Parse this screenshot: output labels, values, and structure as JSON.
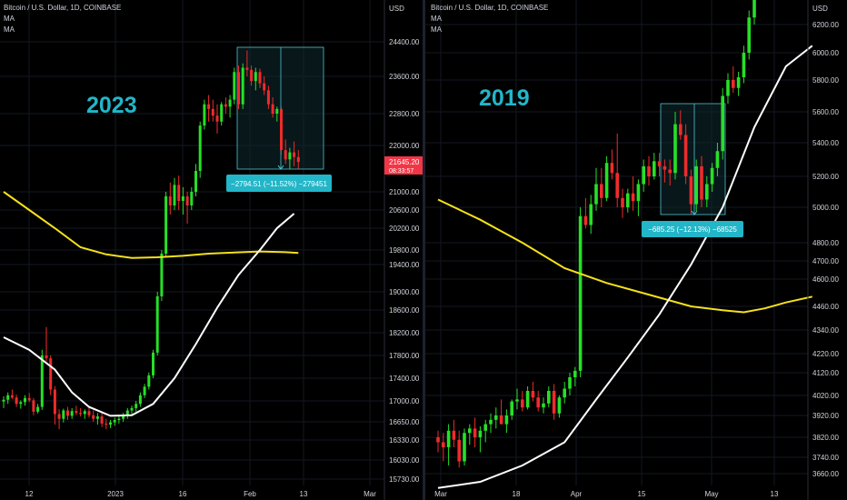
{
  "chart_data": [
    {
      "type": "candlestick",
      "title": "Bitcoin / U.S. Dollar, 1D, COINBASE",
      "indicators": [
        "MA",
        "MA"
      ],
      "annotation": "2023",
      "currency": "USD",
      "y_ticks": [
        24400,
        23600,
        22800,
        22000,
        21000,
        20600,
        20200,
        19800,
        19400,
        19000,
        18600,
        18200,
        17800,
        17400,
        17000,
        16650,
        16330,
        16030,
        15730
      ],
      "y_tick_labels": [
        "24400.00",
        "23600.00",
        "22800.00",
        "22000.00",
        "21000.00",
        "20600.00",
        "20200.00",
        "19800.00",
        "19400.00",
        "19000.00",
        "18600.00",
        "18200.00",
        "17800.00",
        "17400.00",
        "17000.00",
        "16650.00",
        "16330.00",
        "16030.00",
        "15730.00"
      ],
      "x_labels": [
        "12",
        "2023",
        "16",
        "Feb",
        "13",
        "Mar"
      ],
      "price_label": "21645.20",
      "countdown": "08:33:57",
      "measure_label": "−2794.51 (−11.52%) −279451",
      "candles": [
        [
          16990,
          17080,
          16880,
          17020
        ],
        [
          17020,
          17150,
          16950,
          17100
        ],
        [
          17100,
          17200,
          17030,
          17060
        ],
        [
          17060,
          17110,
          16900,
          16950
        ],
        [
          16950,
          17010,
          16870,
          16980
        ],
        [
          16980,
          17100,
          16920,
          17050
        ],
        [
          17050,
          17140,
          16980,
          17010
        ],
        [
          17010,
          17050,
          16760,
          16820
        ],
        [
          16820,
          16950,
          16790,
          16900
        ],
        [
          16900,
          17900,
          16850,
          17800
        ],
        [
          17800,
          18300,
          17700,
          17750
        ],
        [
          17750,
          17800,
          17100,
          17200
        ],
        [
          17200,
          17260,
          16600,
          16780
        ],
        [
          16780,
          16860,
          16520,
          16700
        ],
        [
          16700,
          16870,
          16640,
          16840
        ],
        [
          16840,
          16900,
          16680,
          16750
        ],
        [
          16750,
          16880,
          16700,
          16830
        ],
        [
          16830,
          16920,
          16760,
          16800
        ],
        [
          16800,
          16880,
          16740,
          16780
        ],
        [
          16780,
          16860,
          16700,
          16830
        ],
        [
          16830,
          16900,
          16720,
          16760
        ],
        [
          16760,
          16840,
          16650,
          16700
        ],
        [
          16700,
          16800,
          16600,
          16740
        ],
        [
          16740,
          16820,
          16560,
          16620
        ],
        [
          16620,
          16700,
          16520,
          16600
        ],
        [
          16600,
          16680,
          16540,
          16640
        ],
        [
          16640,
          16720,
          16580,
          16680
        ],
        [
          16680,
          16760,
          16620,
          16700
        ],
        [
          16700,
          16800,
          16650,
          16760
        ],
        [
          16760,
          16880,
          16700,
          16840
        ],
        [
          16840,
          16920,
          16780,
          16880
        ],
        [
          16880,
          17000,
          16820,
          16950
        ],
        [
          16950,
          17150,
          16900,
          17100
        ],
        [
          17100,
          17300,
          17050,
          17250
        ],
        [
          17250,
          17500,
          17200,
          17450
        ],
        [
          17450,
          17900,
          17400,
          17850
        ],
        [
          17850,
          19000,
          17800,
          18900
        ],
        [
          18900,
          19800,
          18800,
          19700
        ],
        [
          19700,
          21000,
          19600,
          20900
        ],
        [
          20900,
          21200,
          20500,
          20700
        ],
        [
          20700,
          21300,
          20600,
          21150
        ],
        [
          21150,
          21350,
          20600,
          20800
        ],
        [
          20800,
          21100,
          20500,
          20900
        ],
        [
          20900,
          21000,
          20300,
          20700
        ],
        [
          20700,
          21100,
          20600,
          21000
        ],
        [
          21000,
          21600,
          20900,
          21450
        ],
        [
          21450,
          22600,
          21300,
          22500
        ],
        [
          22500,
          23100,
          22400,
          23000
        ],
        [
          23000,
          23200,
          22600,
          22900
        ],
        [
          22900,
          23100,
          22600,
          22750
        ],
        [
          22750,
          23000,
          22300,
          22600
        ],
        [
          22600,
          23050,
          22500,
          23000
        ],
        [
          23000,
          23150,
          22800,
          22950
        ],
        [
          22950,
          23200,
          22700,
          23100
        ],
        [
          23100,
          23800,
          23000,
          23700
        ],
        [
          23700,
          23850,
          22900,
          23000
        ],
        [
          23000,
          23900,
          22900,
          23800
        ],
        [
          23800,
          24200,
          23600,
          23750
        ],
        [
          23750,
          23850,
          23400,
          23500
        ],
        [
          23500,
          23800,
          23300,
          23700
        ],
        [
          23700,
          23780,
          23350,
          23450
        ],
        [
          23450,
          23600,
          23200,
          23300
        ],
        [
          23300,
          23400,
          22900,
          23000
        ],
        [
          23000,
          23150,
          22700,
          22800
        ],
        [
          22800,
          22950,
          22600,
          22900
        ],
        [
          22900,
          22950,
          21800,
          21900
        ],
        [
          21900,
          22150,
          21600,
          21700
        ],
        [
          21700,
          21950,
          21500,
          21850
        ],
        [
          21850,
          22100,
          21550,
          21750
        ],
        [
          21750,
          21900,
          21500,
          21645
        ]
      ],
      "ma_white": [
        [
          0,
          18120
        ],
        [
          6,
          17900
        ],
        [
          12,
          17550
        ],
        [
          16,
          17150
        ],
        [
          20,
          16900
        ],
        [
          25,
          16750
        ],
        [
          30,
          16760
        ],
        [
          35,
          16950
        ],
        [
          40,
          17400
        ],
        [
          45,
          18000
        ],
        [
          50,
          18650
        ],
        [
          55,
          19250
        ],
        [
          60,
          19800
        ],
        [
          64,
          20200
        ],
        [
          68,
          20520
        ]
      ],
      "ma_yellow": [
        [
          0,
          21000
        ],
        [
          6,
          20600
        ],
        [
          12,
          20200
        ],
        [
          18,
          19850
        ],
        [
          24,
          19680
        ],
        [
          30,
          19580
        ],
        [
          36,
          19600
        ],
        [
          42,
          19640
        ],
        [
          48,
          19700
        ],
        [
          54,
          19730
        ],
        [
          60,
          19760
        ],
        [
          66,
          19740
        ],
        [
          69,
          19720
        ]
      ]
    },
    {
      "type": "candlestick",
      "title": "Bitcoin / U.S. Dollar, 1D, COINBASE",
      "indicators": [
        "MA",
        "MA"
      ],
      "annotation": "2019",
      "currency": "USD",
      "y_ticks": [
        6200,
        6000,
        5800,
        5600,
        5400,
        5200,
        5000,
        4800,
        4700,
        4600,
        4460,
        4340,
        4220,
        4120,
        4020,
        3920,
        3820,
        3740,
        3660
      ],
      "y_tick_labels": [
        "6200.00",
        "6000.00",
        "5800.00",
        "5600.00",
        "5400.00",
        "5200.00",
        "5000.00",
        "4800.00",
        "4700.00",
        "4600.00",
        "4460.00",
        "4340.00",
        "4220.00",
        "4120.00",
        "4020.00",
        "3920.00",
        "3820.00",
        "3740.00",
        "3660.00"
      ],
      "x_labels": [
        "Mar",
        "18",
        "Apr",
        "15",
        "May",
        "13"
      ],
      "measure_label": "−685.25 (−12.13%) −68525",
      "candles": [
        [
          3820,
          3850,
          3760,
          3800
        ],
        [
          3800,
          3840,
          3720,
          3780
        ],
        [
          3780,
          3880,
          3700,
          3850
        ],
        [
          3850,
          3900,
          3780,
          3810
        ],
        [
          3810,
          3850,
          3690,
          3720
        ],
        [
          3720,
          3860,
          3700,
          3840
        ],
        [
          3840,
          3880,
          3790,
          3860
        ],
        [
          3860,
          3910,
          3780,
          3820
        ],
        [
          3820,
          3870,
          3760,
          3850
        ],
        [
          3850,
          3900,
          3800,
          3880
        ],
        [
          3880,
          3930,
          3840,
          3900
        ],
        [
          3900,
          3960,
          3860,
          3920
        ],
        [
          3920,
          4000,
          3880,
          3880
        ],
        [
          3880,
          3950,
          3840,
          3920
        ],
        [
          3920,
          4000,
          3900,
          3990
        ],
        [
          3990,
          4050,
          3950,
          4000
        ],
        [
          4000,
          4040,
          3940,
          3960
        ],
        [
          3960,
          4060,
          3950,
          4040
        ],
        [
          4040,
          4080,
          3990,
          4010
        ],
        [
          4010,
          4040,
          3940,
          3960
        ],
        [
          3960,
          4010,
          3930,
          3980
        ],
        [
          3980,
          4060,
          3960,
          4040
        ],
        [
          4040,
          4070,
          3900,
          3930
        ],
        [
          3930,
          4020,
          3910,
          4010
        ],
        [
          4010,
          4080,
          3980,
          4050
        ],
        [
          4050,
          4120,
          4020,
          4100
        ],
        [
          4100,
          4150,
          4060,
          4130
        ],
        [
          4130,
          5000,
          4100,
          4950
        ],
        [
          4950,
          5060,
          4880,
          4900
        ],
        [
          4900,
          5080,
          4850,
          5020
        ],
        [
          5020,
          5250,
          4980,
          5150
        ],
        [
          5150,
          5250,
          5000,
          5060
        ],
        [
          5060,
          5320,
          5040,
          5280
        ],
        [
          5280,
          5360,
          5180,
          5220
        ],
        [
          5220,
          5460,
          5000,
          5060
        ],
        [
          5060,
          5120,
          4940,
          5000
        ],
        [
          5000,
          5120,
          4970,
          5090
        ],
        [
          5090,
          5200,
          4980,
          5040
        ],
        [
          5040,
          5180,
          4950,
          5150
        ],
        [
          5150,
          5300,
          5100,
          5260
        ],
        [
          5260,
          5320,
          5140,
          5200
        ],
        [
          5200,
          5340,
          5180,
          5290
        ],
        [
          5290,
          5340,
          5200,
          5260
        ],
        [
          5260,
          5300,
          5160,
          5240
        ],
        [
          5240,
          5300,
          5140,
          5220
        ],
        [
          5220,
          5600,
          5180,
          5520
        ],
        [
          5520,
          5610,
          5420,
          5450
        ],
        [
          5450,
          5520,
          5150,
          5200
        ],
        [
          5200,
          5240,
          4960,
          5020
        ],
        [
          5020,
          5300,
          4980,
          5260
        ],
        [
          5260,
          5320,
          5000,
          5050
        ],
        [
          5050,
          5200,
          5000,
          5150
        ],
        [
          5150,
          5280,
          5100,
          5250
        ],
        [
          5250,
          5400,
          5200,
          5350
        ],
        [
          5350,
          5750,
          5300,
          5700
        ],
        [
          5700,
          5850,
          5650,
          5800
        ],
        [
          5800,
          5900,
          5720,
          5750
        ],
        [
          5750,
          5860,
          5700,
          5820
        ],
        [
          5820,
          6050,
          5780,
          6000
        ],
        [
          6000,
          6300,
          5950,
          6250
        ],
        [
          6250,
          6450,
          6200,
          6400
        ]
      ],
      "ma_white": [
        [
          0,
          3590
        ],
        [
          8,
          3620
        ],
        [
          16,
          3700
        ],
        [
          24,
          3800
        ],
        [
          30,
          4000
        ],
        [
          36,
          4200
        ],
        [
          42,
          4420
        ],
        [
          48,
          4680
        ],
        [
          54,
          5000
        ],
        [
          60,
          5500
        ],
        [
          66,
          5900
        ],
        [
          71,
          6050
        ]
      ],
      "ma_yellow": [
        [
          0,
          5050
        ],
        [
          8,
          4930
        ],
        [
          16,
          4800
        ],
        [
          24,
          4660
        ],
        [
          32,
          4580
        ],
        [
          40,
          4520
        ],
        [
          48,
          4460
        ],
        [
          54,
          4440
        ],
        [
          58,
          4430
        ],
        [
          62,
          4450
        ],
        [
          66,
          4480
        ],
        [
          71,
          4510
        ]
      ]
    }
  ]
}
